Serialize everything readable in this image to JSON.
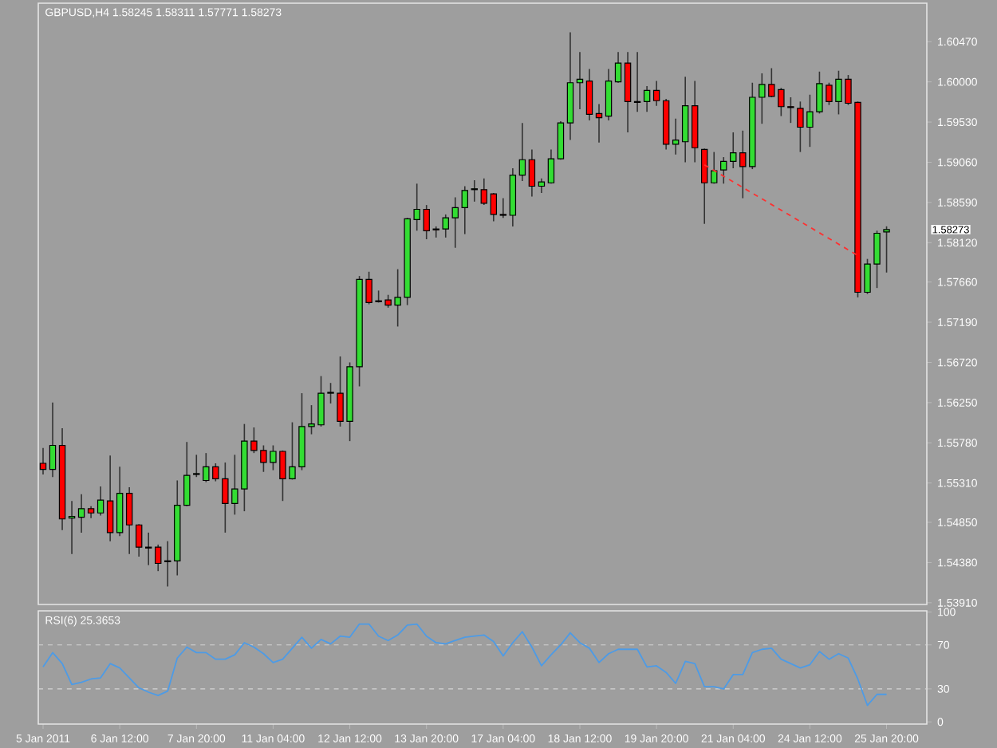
{
  "chart_data": [
    {
      "type": "candlestick",
      "title": "GBPUSD,H4  1.58245 1.58311 1.57771 1.58273",
      "categories": [
        null,
        null,
        null,
        null,
        null,
        null,
        null,
        null,
        null,
        null,
        null,
        null,
        null,
        null,
        null,
        null,
        null,
        null,
        null,
        null,
        null,
        null,
        null,
        null,
        null,
        null,
        null,
        null,
        null,
        null,
        null,
        null,
        null,
        null,
        null,
        null,
        null,
        null,
        null,
        null,
        null,
        null,
        null,
        null,
        null,
        null,
        null,
        null,
        null,
        null,
        null,
        null,
        null,
        null,
        null,
        null,
        null,
        null,
        null,
        null,
        null,
        null,
        null,
        null,
        null,
        null,
        null,
        null,
        null,
        null,
        null,
        null,
        null,
        null,
        null,
        null,
        null,
        null,
        null,
        null,
        null,
        null,
        null,
        null,
        null,
        null,
        null,
        null,
        null
      ],
      "ohlc": [
        [
          1.5554,
          1.5572,
          1.5541,
          1.5547
        ],
        [
          1.5547,
          1.5625,
          1.5538,
          1.5575
        ],
        [
          1.5575,
          1.5595,
          1.5476,
          1.5489
        ],
        [
          1.549,
          1.551,
          1.5448,
          1.5492
        ],
        [
          1.5491,
          1.5518,
          1.5473,
          1.5501
        ],
        [
          1.5501,
          1.5504,
          1.549,
          1.5496
        ],
        [
          1.5496,
          1.5527,
          1.5493,
          1.5511
        ],
        [
          1.551,
          1.5563,
          1.5463,
          1.5473
        ],
        [
          1.5473,
          1.555,
          1.5469,
          1.5519
        ],
        [
          1.5519,
          1.5526,
          1.5448,
          1.5482
        ],
        [
          1.5482,
          1.5483,
          1.5445,
          1.5456
        ],
        [
          1.5456,
          1.5473,
          1.5435,
          1.5455
        ],
        [
          1.5456,
          1.5459,
          1.5428,
          1.5437
        ],
        [
          1.544,
          1.5463,
          1.541,
          1.5439
        ],
        [
          1.544,
          1.5534,
          1.5423,
          1.5505
        ],
        [
          1.5505,
          1.5579,
          1.5504,
          1.554
        ],
        [
          1.5541,
          1.5564,
          1.5538,
          1.5542
        ],
        [
          1.5534,
          1.5566,
          1.5532,
          1.555
        ],
        [
          1.555,
          1.5554,
          1.5533,
          1.5536
        ],
        [
          1.5536,
          1.5555,
          1.5473,
          1.5507
        ],
        [
          1.5507,
          1.5564,
          1.5494,
          1.5524
        ],
        [
          1.5524,
          1.56,
          1.5498,
          1.558
        ],
        [
          1.558,
          1.5596,
          1.5566,
          1.5569
        ],
        [
          1.5569,
          1.5575,
          1.5544,
          1.5555
        ],
        [
          1.5555,
          1.5575,
          1.5546,
          1.5568
        ],
        [
          1.5568,
          1.5569,
          1.551,
          1.5536
        ],
        [
          1.5536,
          1.5602,
          1.5535,
          1.555
        ],
        [
          1.555,
          1.5636,
          1.5546,
          1.5597
        ],
        [
          1.5597,
          1.5622,
          1.5588,
          1.56
        ],
        [
          1.5599,
          1.5656,
          1.5597,
          1.5636
        ],
        [
          1.5636,
          1.5648,
          1.5624,
          1.5637
        ],
        [
          1.5636,
          1.5679,
          1.5597,
          1.5603
        ],
        [
          1.5603,
          1.5672,
          1.558,
          1.5667
        ],
        [
          1.5667,
          1.5773,
          1.5644,
          1.5769
        ],
        [
          1.5769,
          1.5778,
          1.574,
          1.5742
        ],
        [
          1.5744,
          1.5756,
          1.5742,
          1.5743
        ],
        [
          1.5745,
          1.5751,
          1.5736,
          1.5739
        ],
        [
          1.5739,
          1.5781,
          1.5714,
          1.5748
        ],
        [
          1.5748,
          1.5841,
          1.5739,
          1.584
        ],
        [
          1.5839,
          1.5881,
          1.5826,
          1.5851
        ],
        [
          1.5851,
          1.5856,
          1.5816,
          1.5826
        ],
        [
          1.5828,
          1.5831,
          1.5818,
          1.5827
        ],
        [
          1.5828,
          1.5845,
          1.5818,
          1.5841
        ],
        [
          1.5841,
          1.5865,
          1.5806,
          1.5853
        ],
        [
          1.5853,
          1.5878,
          1.5822,
          1.5873
        ],
        [
          1.5874,
          1.5885,
          1.586,
          1.5875
        ],
        [
          1.5874,
          1.5887,
          1.5856,
          1.5858
        ],
        [
          1.5869,
          1.587,
          1.5837,
          1.5845
        ],
        [
          1.5845,
          1.5864,
          1.5841,
          1.5844
        ],
        [
          1.5844,
          1.5899,
          1.5831,
          1.5891
        ],
        [
          1.5891,
          1.5952,
          1.5884,
          1.5909
        ],
        [
          1.5909,
          1.5921,
          1.5866,
          1.5878
        ],
        [
          1.5878,
          1.5887,
          1.587,
          1.5883
        ],
        [
          1.5882,
          1.5921,
          1.5881,
          1.591
        ],
        [
          1.591,
          1.5954,
          1.5909,
          1.5952
        ],
        [
          1.5952,
          1.6058,
          1.5932,
          1.5999
        ],
        [
          1.5999,
          1.6035,
          1.5968,
          1.6003
        ],
        [
          1.6001,
          1.6015,
          1.5955,
          1.5962
        ],
        [
          1.5963,
          1.5974,
          1.5929,
          1.5958
        ],
        [
          1.596,
          1.6015,
          1.5955,
          1.6001
        ],
        [
          1.6,
          1.6035,
          1.5999,
          1.6022
        ],
        [
          1.6022,
          1.6035,
          1.5941,
          1.5977
        ],
        [
          1.5977,
          1.6035,
          1.5965,
          1.5976
        ],
        [
          1.5977,
          1.5995,
          1.5965,
          1.599
        ],
        [
          1.599,
          1.6001,
          1.5972,
          1.5978
        ],
        [
          1.5978,
          1.598,
          1.5921,
          1.5927
        ],
        [
          1.5927,
          1.5957,
          1.5915,
          1.5932
        ],
        [
          1.593,
          1.6006,
          1.5906,
          1.5972
        ],
        [
          1.5972,
          1.6001,
          1.5906,
          1.5923
        ],
        [
          1.5921,
          1.5922,
          1.5834,
          1.5882
        ],
        [
          1.5882,
          1.5918,
          1.5881,
          1.5896
        ],
        [
          1.5897,
          1.5912,
          1.5881,
          1.5907
        ],
        [
          1.5907,
          1.5941,
          1.5899,
          1.5917
        ],
        [
          1.5917,
          1.5943,
          1.5864,
          1.5901
        ],
        [
          1.5901,
          1.5999,
          1.5898,
          1.5982
        ],
        [
          1.5982,
          1.601,
          1.5951,
          1.5997
        ],
        [
          1.5997,
          1.6016,
          1.5982,
          1.5983
        ],
        [
          1.5991,
          1.5993,
          1.596,
          1.5971
        ],
        [
          1.5971,
          1.5982,
          1.5952,
          1.597
        ],
        [
          1.5969,
          1.5977,
          1.5918,
          1.5947
        ],
        [
          1.5947,
          1.5985,
          1.5924,
          1.5965
        ],
        [
          1.5965,
          1.6012,
          1.5963,
          1.5998
        ],
        [
          1.5996,
          1.5999,
          1.5973,
          1.5977
        ],
        [
          1.5977,
          1.6013,
          1.5962,
          1.6003
        ],
        [
          1.6003,
          1.6008,
          1.5973,
          1.5975
        ],
        [
          1.5976,
          1.5977,
          1.5748,
          1.5754
        ],
        [
          1.5754,
          1.5793,
          1.5752,
          1.5787
        ],
        [
          1.5787,
          1.5826,
          1.5759,
          1.5823
        ],
        [
          1.58245,
          1.58311,
          1.57771,
          1.58273
        ]
      ],
      "colors": [
        "#ff0000",
        "#33dd33",
        "#ff0000",
        "#33dd33",
        "#33dd33",
        "#ff0000",
        "#33dd33",
        "#ff0000",
        "#33dd33",
        "#ff0000",
        "#ff0000",
        "#ff0000",
        "#ff0000",
        "#ff0000",
        "#33dd33",
        "#33dd33",
        "#33dd33",
        "#33dd33",
        "#ff0000",
        "#ff0000",
        "#33dd33",
        "#33dd33",
        "#ff0000",
        "#ff0000",
        "#33dd33",
        "#ff0000",
        "#33dd33",
        "#33dd33",
        "#33dd33",
        "#33dd33",
        "#33dd33",
        "#ff0000",
        "#33dd33",
        "#33dd33",
        "#ff0000",
        "#ff0000",
        "#ff0000",
        "#33dd33",
        "#33dd33",
        "#33dd33",
        "#ff0000",
        "#ff0000",
        "#33dd33",
        "#33dd33",
        "#33dd33",
        "#33dd33",
        "#ff0000",
        "#ff0000",
        "#ff0000",
        "#33dd33",
        "#33dd33",
        "#ff0000",
        "#33dd33",
        "#33dd33",
        "#33dd33",
        "#33dd33",
        "#33dd33",
        "#ff0000",
        "#ff0000",
        "#33dd33",
        "#33dd33",
        "#ff0000",
        "#ff0000",
        "#33dd33",
        "#ff0000",
        "#ff0000",
        "#33dd33",
        "#33dd33",
        "#ff0000",
        "#ff0000",
        "#33dd33",
        "#33dd33",
        "#33dd33",
        "#ff0000",
        "#33dd33",
        "#33dd33",
        "#ff0000",
        "#ff0000",
        "#ff0000",
        "#ff0000",
        "#33dd33",
        "#33dd33",
        "#ff0000",
        "#33dd33",
        "#ff0000",
        "#ff0000",
        "#33dd33",
        "#33dd33",
        "#33dd33"
      ],
      "series": [
        {
          "type": "line",
          "color": "#ff3030",
          "line_style": "dashed",
          "values": [
            null,
            null,
            null,
            null,
            null,
            null,
            null,
            null,
            null,
            null,
            null,
            null,
            null,
            null,
            null,
            null,
            null,
            null,
            null,
            null,
            null,
            null,
            null,
            null,
            null,
            null,
            null,
            null,
            null,
            null,
            null,
            null,
            null,
            null,
            null,
            null,
            null,
            null,
            null,
            null,
            null,
            null,
            null,
            null,
            null,
            null,
            null,
            null,
            null,
            null,
            null,
            null,
            null,
            null,
            null,
            null,
            null,
            null,
            null,
            null,
            null,
            null,
            null,
            null,
            null,
            null,
            null,
            null,
            null,
            1.5903,
            null,
            null,
            null,
            null,
            null,
            null,
            null,
            null,
            null,
            null,
            null,
            null,
            null,
            null,
            null,
            1.5797,
            null,
            null,
            null
          ]
        }
      ],
      "ylim": [
        1.5389,
        1.6092
      ],
      "yticks": [
        {
          "value": 1.6047,
          "label": "1.60470"
        },
        {
          "value": 1.6,
          "label": "1.60000"
        },
        {
          "value": 1.5953,
          "label": "1.59530"
        },
        {
          "value": 1.5906,
          "label": "1.59060"
        },
        {
          "value": 1.5859,
          "label": "1.58590"
        },
        {
          "value": 1.5812,
          "label": "1.58120"
        },
        {
          "value": 1.5766,
          "label": "1.57660"
        },
        {
          "value": 1.5719,
          "label": "1.57190"
        },
        {
          "value": 1.5672,
          "label": "1.56720"
        },
        {
          "value": 1.5625,
          "label": "1.56250"
        },
        {
          "value": 1.5578,
          "label": "1.55780"
        },
        {
          "value": 1.5531,
          "label": "1.55310"
        },
        {
          "value": 1.5485,
          "label": "1.54850"
        },
        {
          "value": 1.5438,
          "label": "1.54380"
        },
        {
          "value": 1.5391,
          "label": "1.53910"
        }
      ],
      "tick_labels": "y",
      "annotations": [
        "1.58273"
      ]
    },
    {
      "type": "line",
      "title": "RSI(6) 25.3653",
      "categories": [
        "5 Jan 2011",
        null,
        null,
        null,
        null,
        null,
        null,
        null,
        "6 Jan 12:00",
        null,
        null,
        null,
        null,
        null,
        null,
        null,
        "7 Jan 20:00",
        null,
        null,
        null,
        null,
        null,
        null,
        null,
        "11 Jan 04:00",
        null,
        null,
        null,
        null,
        null,
        null,
        null,
        "12 Jan 12:00",
        null,
        null,
        null,
        null,
        null,
        null,
        null,
        "13 Jan 20:00",
        null,
        null,
        null,
        null,
        null,
        null,
        null,
        "17 Jan 04:00",
        null,
        null,
        null,
        null,
        null,
        null,
        null,
        "18 Jan 12:00",
        null,
        null,
        null,
        null,
        null,
        null,
        null,
        "19 Jan 20:00",
        null,
        null,
        null,
        null,
        null,
        null,
        null,
        "21 Jan 04:00",
        null,
        null,
        null,
        null,
        null,
        null,
        null,
        "24 Jan 12:00",
        null,
        null,
        null,
        null,
        null,
        null,
        null,
        "25 Jan 20:00"
      ],
      "series": [
        {
          "color": "#4d9be6",
          "values": [
            50,
            63,
            53,
            34,
            36,
            39,
            40,
            53,
            49,
            40,
            31,
            27,
            24,
            28,
            58,
            68,
            63,
            63,
            57,
            57,
            61,
            72,
            68,
            62,
            54,
            57,
            67,
            77,
            67,
            75,
            71,
            78,
            77,
            89,
            89,
            78,
            74,
            79,
            88,
            89,
            78,
            72,
            71,
            74,
            77,
            78,
            79,
            73,
            60,
            72,
            82,
            68,
            51,
            61,
            70,
            81,
            72,
            67,
            54,
            62,
            66,
            66,
            66,
            50,
            51,
            45,
            35,
            55,
            53,
            32,
            32,
            30,
            43,
            43,
            63,
            66,
            67,
            57,
            53,
            49,
            52,
            64,
            57,
            62,
            58,
            39,
            15,
            25,
            25
          ]
        }
      ],
      "ylim": [
        -2,
        101
      ],
      "yticks": [
        0,
        30,
        70,
        100
      ],
      "ref_lines": [
        {
          "axis": "y",
          "value": 70,
          "color": "#d4d4d4",
          "line_style": "dashed"
        },
        {
          "axis": "y",
          "value": 30,
          "color": "#d4d4d4",
          "line_style": "dashed"
        }
      ]
    }
  ]
}
